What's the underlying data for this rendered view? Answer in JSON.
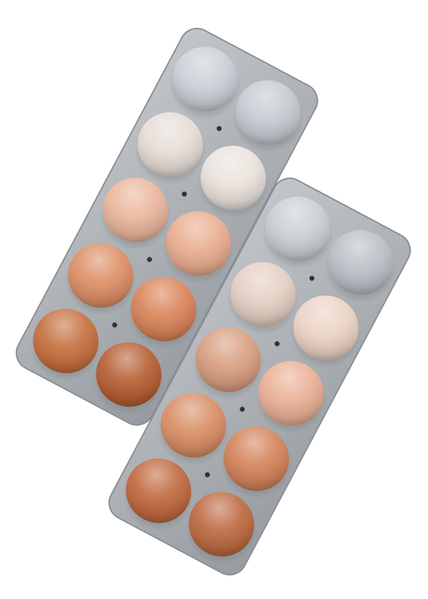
{
  "photo": {
    "background": "#ffffff",
    "cartons": [
      {
        "name": "carton-upper",
        "rows": [
          [
            "#c9d0d6",
            "#c4cbd1"
          ],
          [
            "#e6ddd6",
            "#eae2dc"
          ],
          [
            "#eab69c",
            "#e9ad8f"
          ],
          [
            "#dc8f66",
            "#d98459"
          ],
          [
            "#c6703f",
            "#b65f33"
          ]
        ]
      },
      {
        "name": "carton-lower",
        "rows": [
          [
            "#c9cfd5",
            "#b9c0c6"
          ],
          [
            "#e5cfc3",
            "#ecd3c5"
          ],
          [
            "#d89e80",
            "#eab096"
          ],
          [
            "#d88e65",
            "#d3835a"
          ],
          [
            "#c06940",
            "#bd6a41"
          ]
        ]
      }
    ],
    "carton_color": "#a9aeb3"
  }
}
